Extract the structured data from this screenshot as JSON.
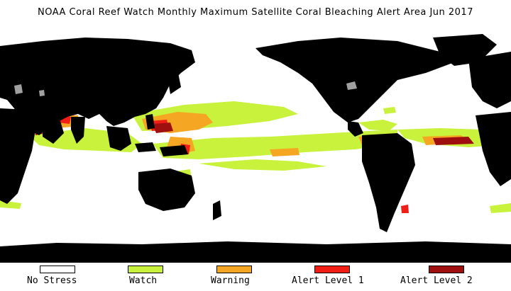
{
  "title": "NOAA Coral Reef Watch Monthly Maximum Satellite Coral Bleaching Alert Area   Jun 2017",
  "colors": {
    "ocean": "#ffffff",
    "land": "#000000",
    "lake": "#a0a0a0"
  },
  "legend": [
    {
      "label": "No Stress",
      "color": "#ffffff"
    },
    {
      "label": "Watch",
      "color": "#c8f23c"
    },
    {
      "label": "Warning",
      "color": "#f5a623"
    },
    {
      "label": "Alert Level 1",
      "color": "#f01e14"
    },
    {
      "label": "Alert Level 2",
      "color": "#a00f0f"
    }
  ]
}
